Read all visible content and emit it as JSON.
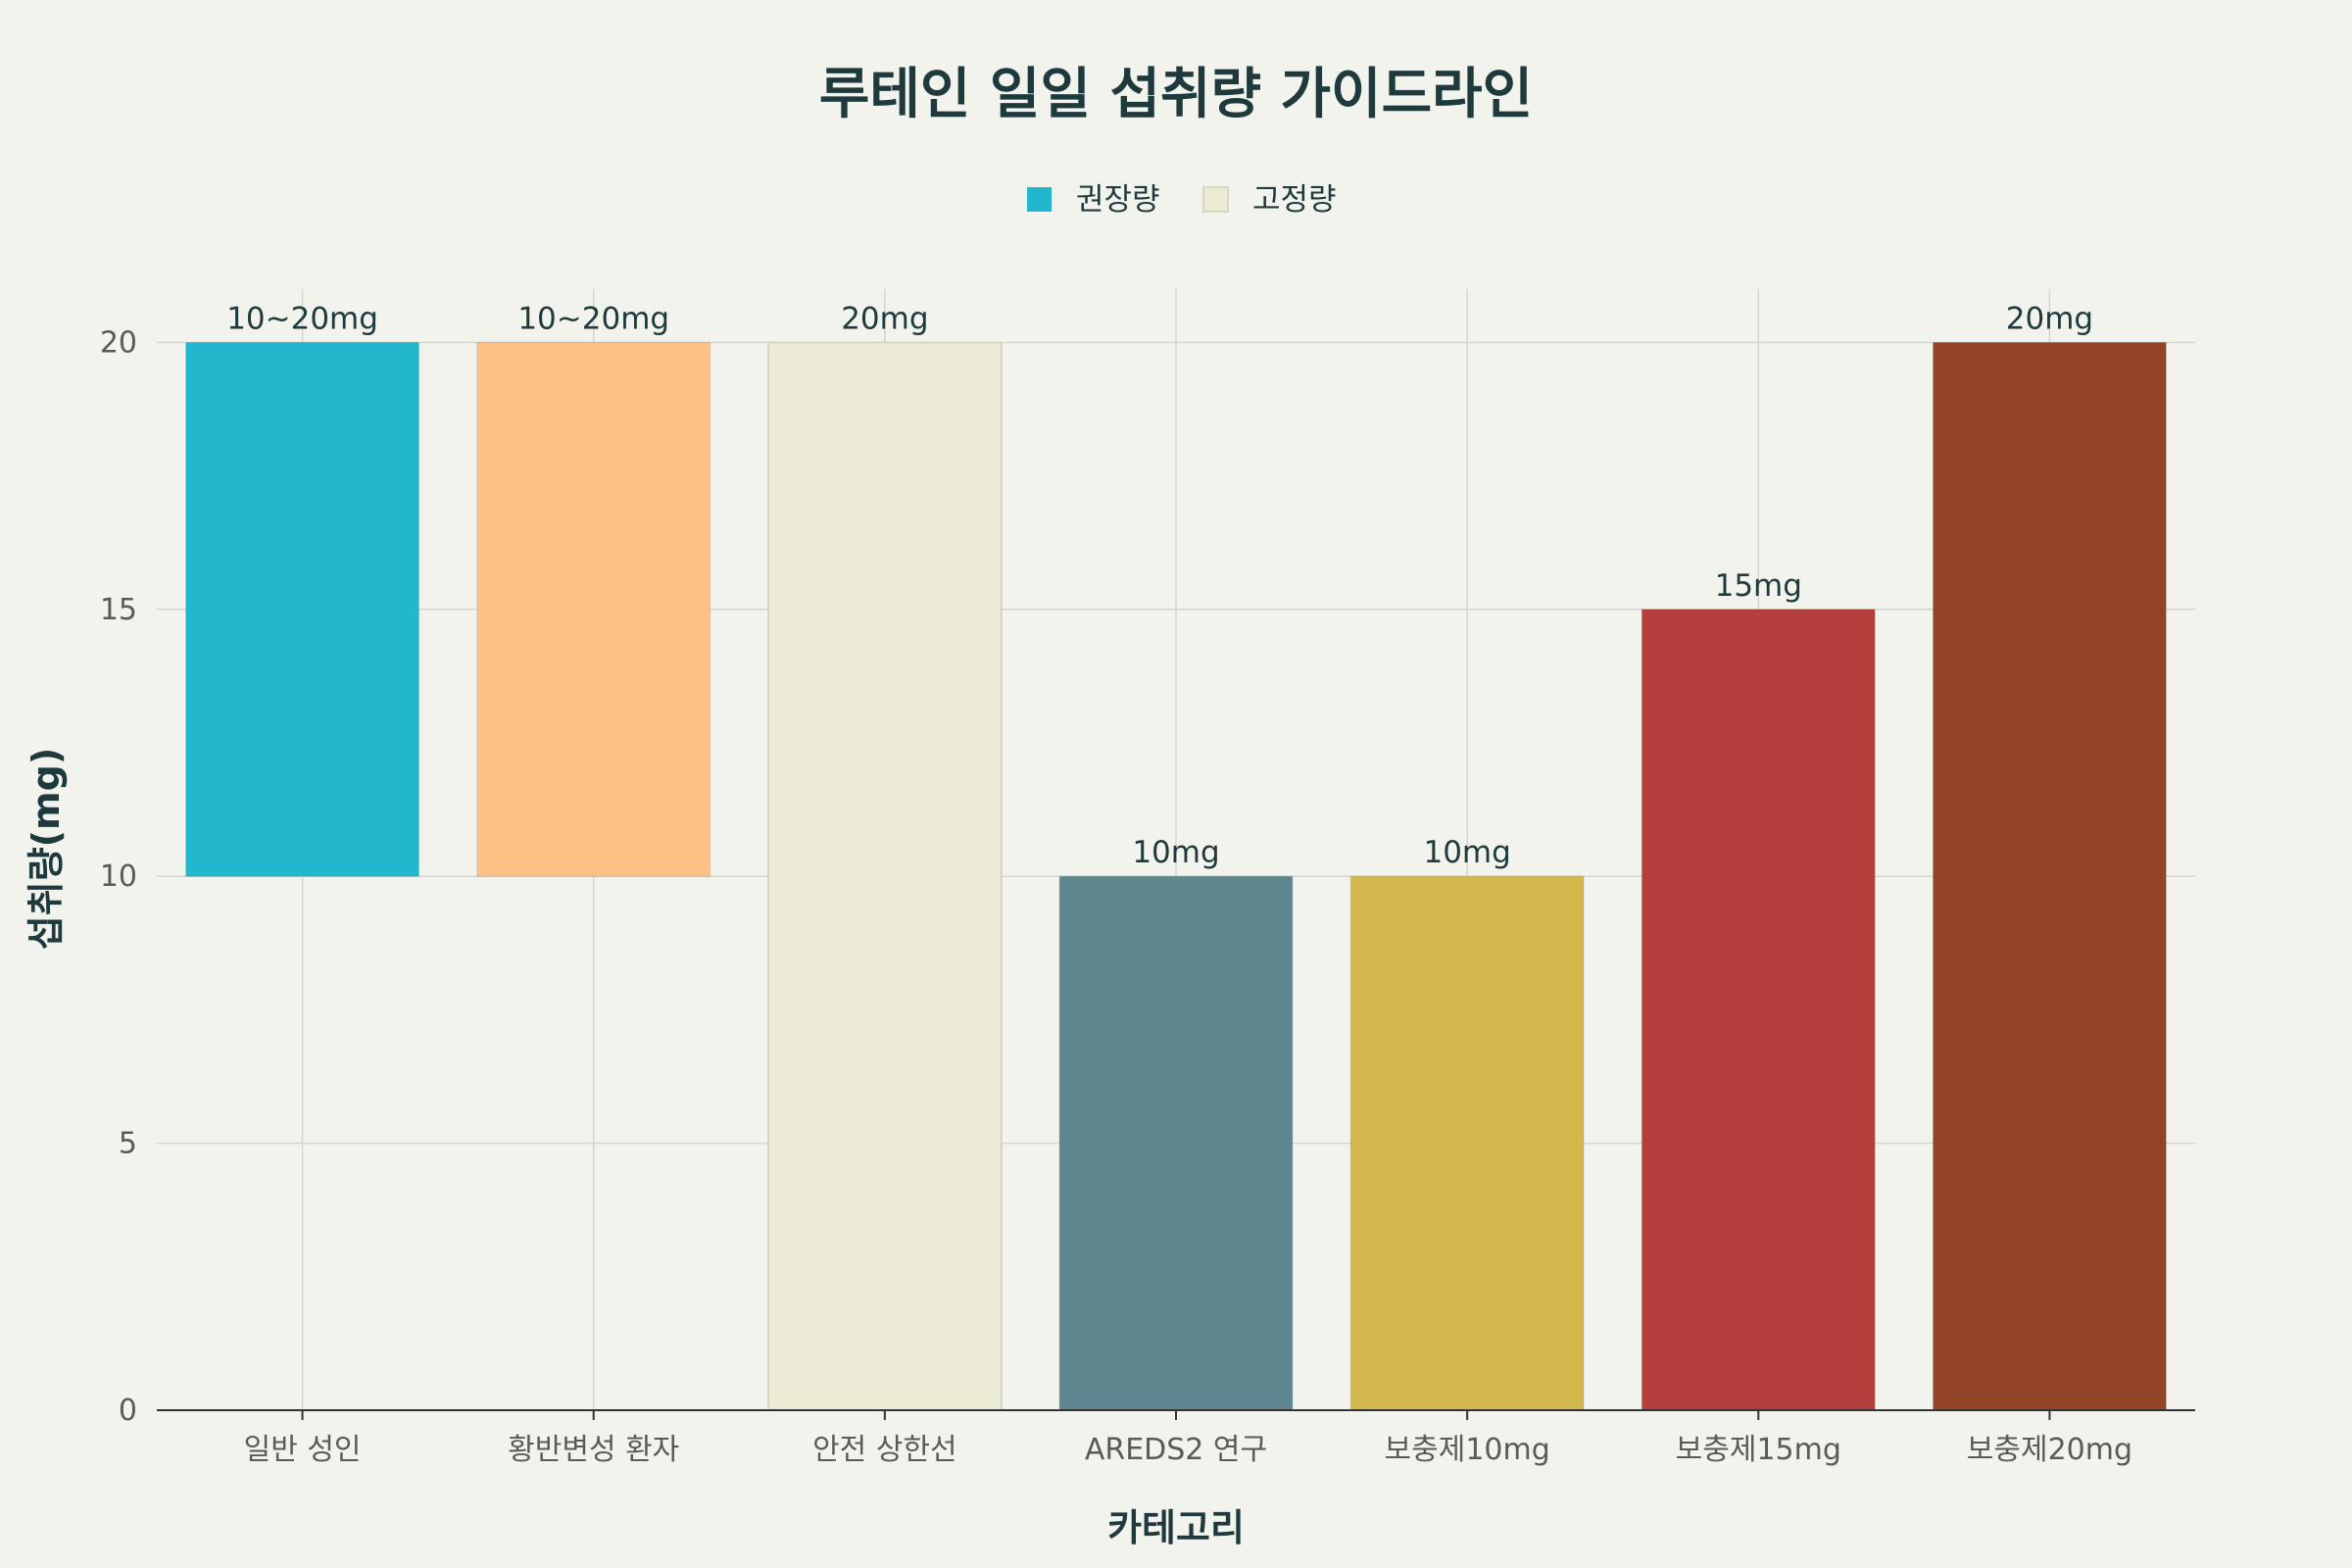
{
  "chart_data": {
    "type": "bar",
    "title": "루테인 일일 섭취량 가이드라인",
    "xlabel": "카테고리",
    "ylabel": "섭취량(mg)",
    "ylim": [
      0,
      21
    ],
    "yticks": [
      0,
      5,
      10,
      15,
      20
    ],
    "grid": true,
    "legend_placement": "top-center",
    "legend": [
      {
        "name": "권장량",
        "color": "#21b8cd"
      },
      {
        "name": "고정량",
        "color": "#ecebd6"
      }
    ],
    "categories": [
      "일반 성인",
      "황반변성 환자",
      "안전 상한선",
      "AREDS2 연구",
      "보충제10mg",
      "보충제15mg",
      "보충제20mg"
    ],
    "bars": [
      {
        "category": "일반 성인",
        "base": 10,
        "value": 20,
        "label": "10~20mg",
        "color": "#21b8cd"
      },
      {
        "category": "황반변성 환자",
        "base": 10,
        "value": 20,
        "label": "10~20mg",
        "color": "#ffc186"
      },
      {
        "category": "안전 상한선",
        "base": 0,
        "value": 20,
        "label": "20mg",
        "color": "#ecebd6"
      },
      {
        "category": "AREDS2 연구",
        "base": 0,
        "value": 10,
        "label": "10mg",
        "color": "#5e8790"
      },
      {
        "category": "보충제10mg",
        "base": 0,
        "value": 10,
        "label": "10mg",
        "color": "#d3b94d"
      },
      {
        "category": "보충제15mg",
        "base": 0,
        "value": 15,
        "label": "15mg",
        "color": "#b4403d"
      },
      {
        "category": "보충제20mg",
        "base": 0,
        "value": 20,
        "label": "20mg",
        "color": "#944426"
      }
    ]
  }
}
